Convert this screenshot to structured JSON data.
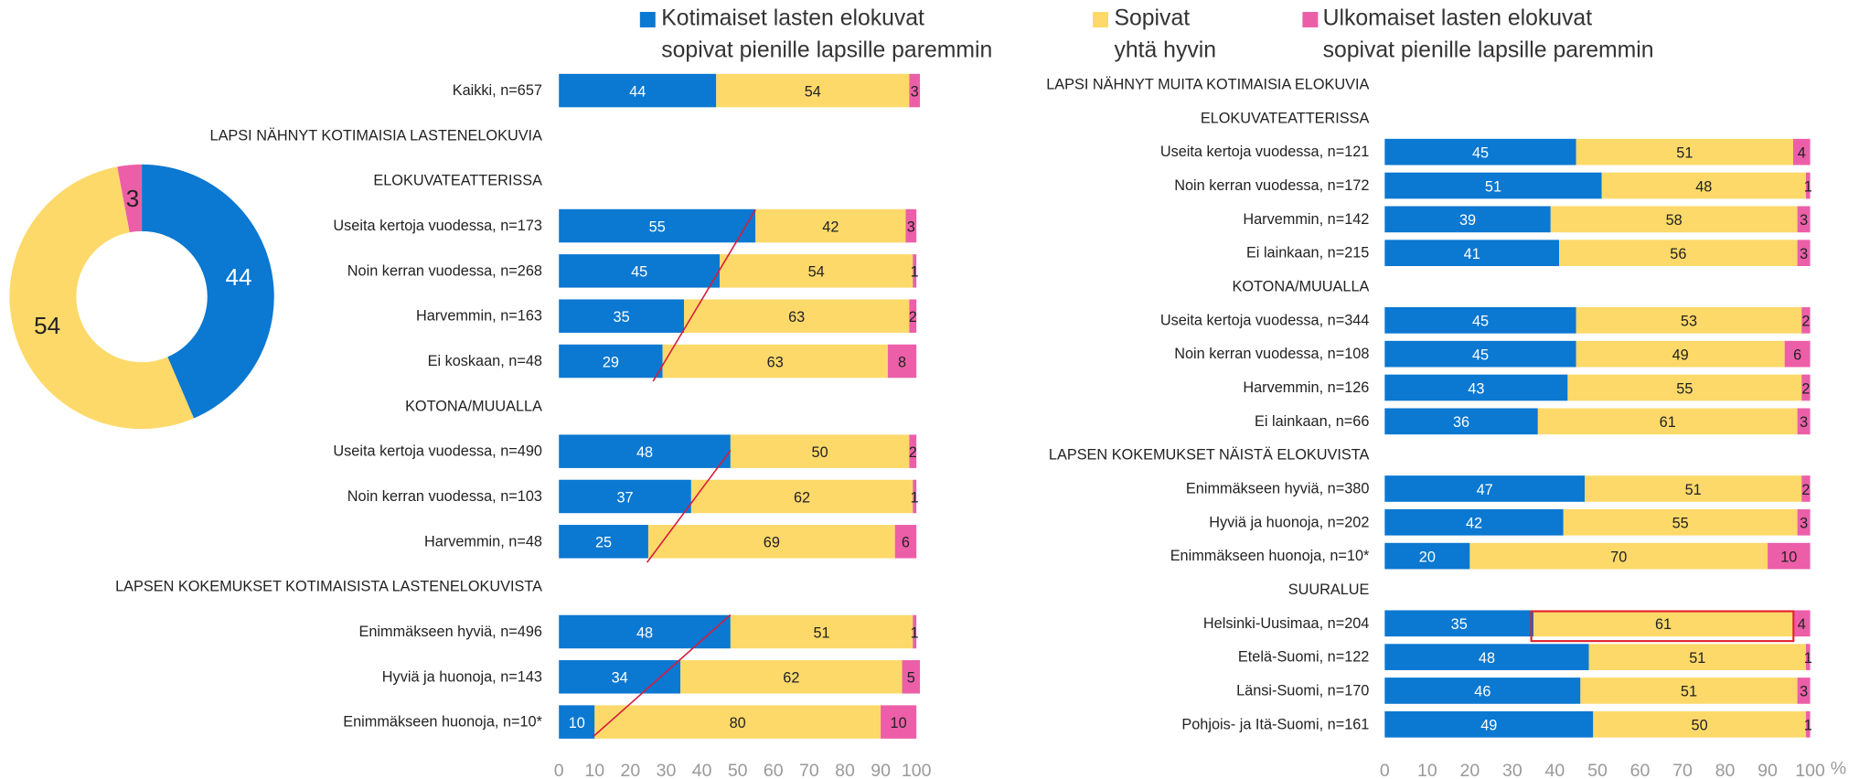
{
  "chart_data": [
    {
      "type": "donut",
      "values": [
        44,
        54,
        3
      ],
      "colors": [
        "#0b78d1",
        "#fdd96a",
        "#ec5fa8"
      ]
    },
    {
      "type": "hbar-stacked",
      "categories": [
        "Kaikki, n=657",
        "LAPSI NÄHNYT KOTIMAISIA LASTENELOKUVIA",
        "ELOKUVATEATTERISSA",
        "Useita kertoja vuodessa, n=173",
        "Noin kerran vuodessa, n=268",
        "Harvemmin, n=163",
        "Ei koskaan, n=48",
        "KOTONA/MUUALLA",
        "Useita kertoja vuodessa, n=490",
        "Noin kerran vuodessa, n=103",
        "Harvemmin, n=48",
        "LAPSEN KOKEMUKSET KOTIMAISISTA LASTENELOKUVISTA",
        "Enimmäkseen hyviä, n=496",
        "Hyviä ja huonoja, n=143",
        "Enimmäkseen huonoja, n=10*"
      ],
      "series": [
        {
          "name": "Kotimaiset lasten elokuvat\nsopivat pienille lapsille paremmin",
          "color": "#0b78d1",
          "values": [
            44,
            null,
            null,
            55,
            45,
            35,
            29,
            null,
            48,
            37,
            25,
            null,
            48,
            34,
            10
          ]
        },
        {
          "name": "Sopivat\nyhtä hyvin",
          "color": "#fdd96a",
          "values": [
            54,
            null,
            null,
            42,
            54,
            63,
            63,
            null,
            50,
            62,
            69,
            null,
            51,
            62,
            80
          ]
        },
        {
          "name": "Ulkomaiset lasten elokuvat\nsopivat pienille lapsille paremmin",
          "color": "#ec5fa8",
          "values": [
            3,
            null,
            null,
            3,
            1,
            2,
            8,
            null,
            2,
            1,
            6,
            null,
            1,
            5,
            10
          ]
        }
      ],
      "xlim": [
        0,
        100
      ],
      "xticks": [
        0,
        10,
        20,
        30,
        40,
        50,
        60,
        70,
        80,
        90,
        100
      ],
      "grid": true
    },
    {
      "type": "hbar-stacked",
      "categories": [
        "LAPSI NÄHNYT MUITA KOTIMAISIA ELOKUVIA",
        "ELOKUVATEATTERISSA",
        "Useita kertoja vuodessa, n=121",
        "Noin kerran vuodessa, n=172",
        "Harvemmin, n=142",
        "Ei lainkaan, n=215",
        "KOTONA/MUUALLA",
        "Useita kertoja vuodessa, n=344",
        "Noin kerran vuodessa, n=108",
        "Harvemmin, n=126",
        "Ei lainkaan, n=66",
        "LAPSEN KOKEMUKSET NÄISTÄ ELOKUVISTA",
        "Enimmäkseen hyviä, n=380",
        "Hyviä ja huonoja, n=202",
        "Enimmäkseen huonoja, n=10*",
        "SUURALUE",
        "Helsinki-Uusimaa, n=204",
        "Etelä-Suomi, n=122",
        "Länsi-Suomi, n=170",
        "Pohjois- ja Itä-Suomi, n=161"
      ],
      "series": [
        {
          "color": "#0b78d1",
          "values": [
            null,
            null,
            45,
            51,
            39,
            41,
            null,
            45,
            45,
            43,
            36,
            null,
            47,
            42,
            20,
            null,
            35,
            48,
            46,
            49
          ]
        },
        {
          "color": "#fdd96a",
          "values": [
            null,
            null,
            51,
            48,
            58,
            56,
            null,
            53,
            49,
            55,
            61,
            null,
            51,
            55,
            70,
            null,
            61,
            51,
            51,
            50
          ]
        },
        {
          "color": "#ec5fa8",
          "values": [
            null,
            null,
            4,
            1,
            3,
            3,
            null,
            2,
            6,
            2,
            3,
            null,
            2,
            3,
            10,
            null,
            4,
            1,
            3,
            1
          ]
        }
      ],
      "xlim": [
        0,
        100
      ],
      "xticks": [
        0,
        10,
        20,
        30,
        40,
        50,
        60,
        70,
        80,
        90,
        100
      ],
      "xlabel": "%",
      "grid": true
    }
  ]
}
